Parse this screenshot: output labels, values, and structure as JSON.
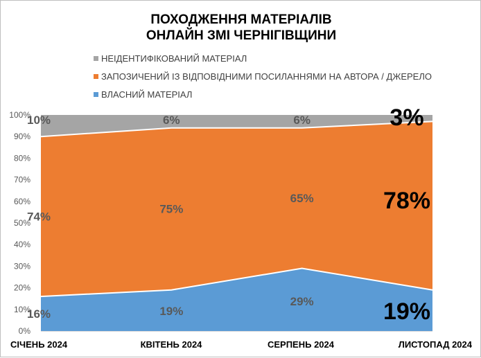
{
  "chart_data": {
    "type": "area",
    "stacked": true,
    "title": [
      "ПОХОДЖЕННЯ МАТЕРІАЛІВ",
      "ОНЛАЙН ЗМІ ЧЕРНІГІВЩИНИ"
    ],
    "categories": [
      "СІЧЕНЬ 2024",
      "КВІТЕНЬ 2024",
      "СЕРПЕНЬ 2024",
      "ЛИСТОПАД 2024"
    ],
    "series": [
      {
        "name": "ВЛАСНИЙ МАТЕРІАЛ",
        "values": [
          16,
          19,
          29,
          19
        ],
        "color": "#5b9bd5"
      },
      {
        "name": "ЗАПОЗИЧЕНИЙ ІЗ ВІДПОВІДНИМИ ПОСИЛАННЯМИ НА АВТОРА / ДЖЕРЕЛО",
        "values": [
          74,
          75,
          65,
          78
        ],
        "color": "#ed7d31"
      },
      {
        "name": "НЕІДЕНТИФІКОВАНИЙ МАТЕРІАЛ",
        "values": [
          10,
          6,
          6,
          3
        ],
        "color": "#a5a5a5"
      }
    ],
    "legend_order": [
      "НЕІДЕНТИФІКОВАНИЙ МАТЕРІАЛ",
      "ЗАПОЗИЧЕНИЙ ІЗ ВІДПОВІДНИМИ ПОСИЛАННЯМИ НА АВТОРА / ДЖЕРЕЛО",
      "ВЛАСНИЙ МАТЕРІАЛ"
    ],
    "legend_position": "top-left",
    "ylim": [
      0,
      100
    ],
    "yticks": [
      "0%",
      "10%",
      "20%",
      "30%",
      "40%",
      "50%",
      "60%",
      "70%",
      "80%",
      "90%",
      "100%"
    ],
    "grid": false
  }
}
